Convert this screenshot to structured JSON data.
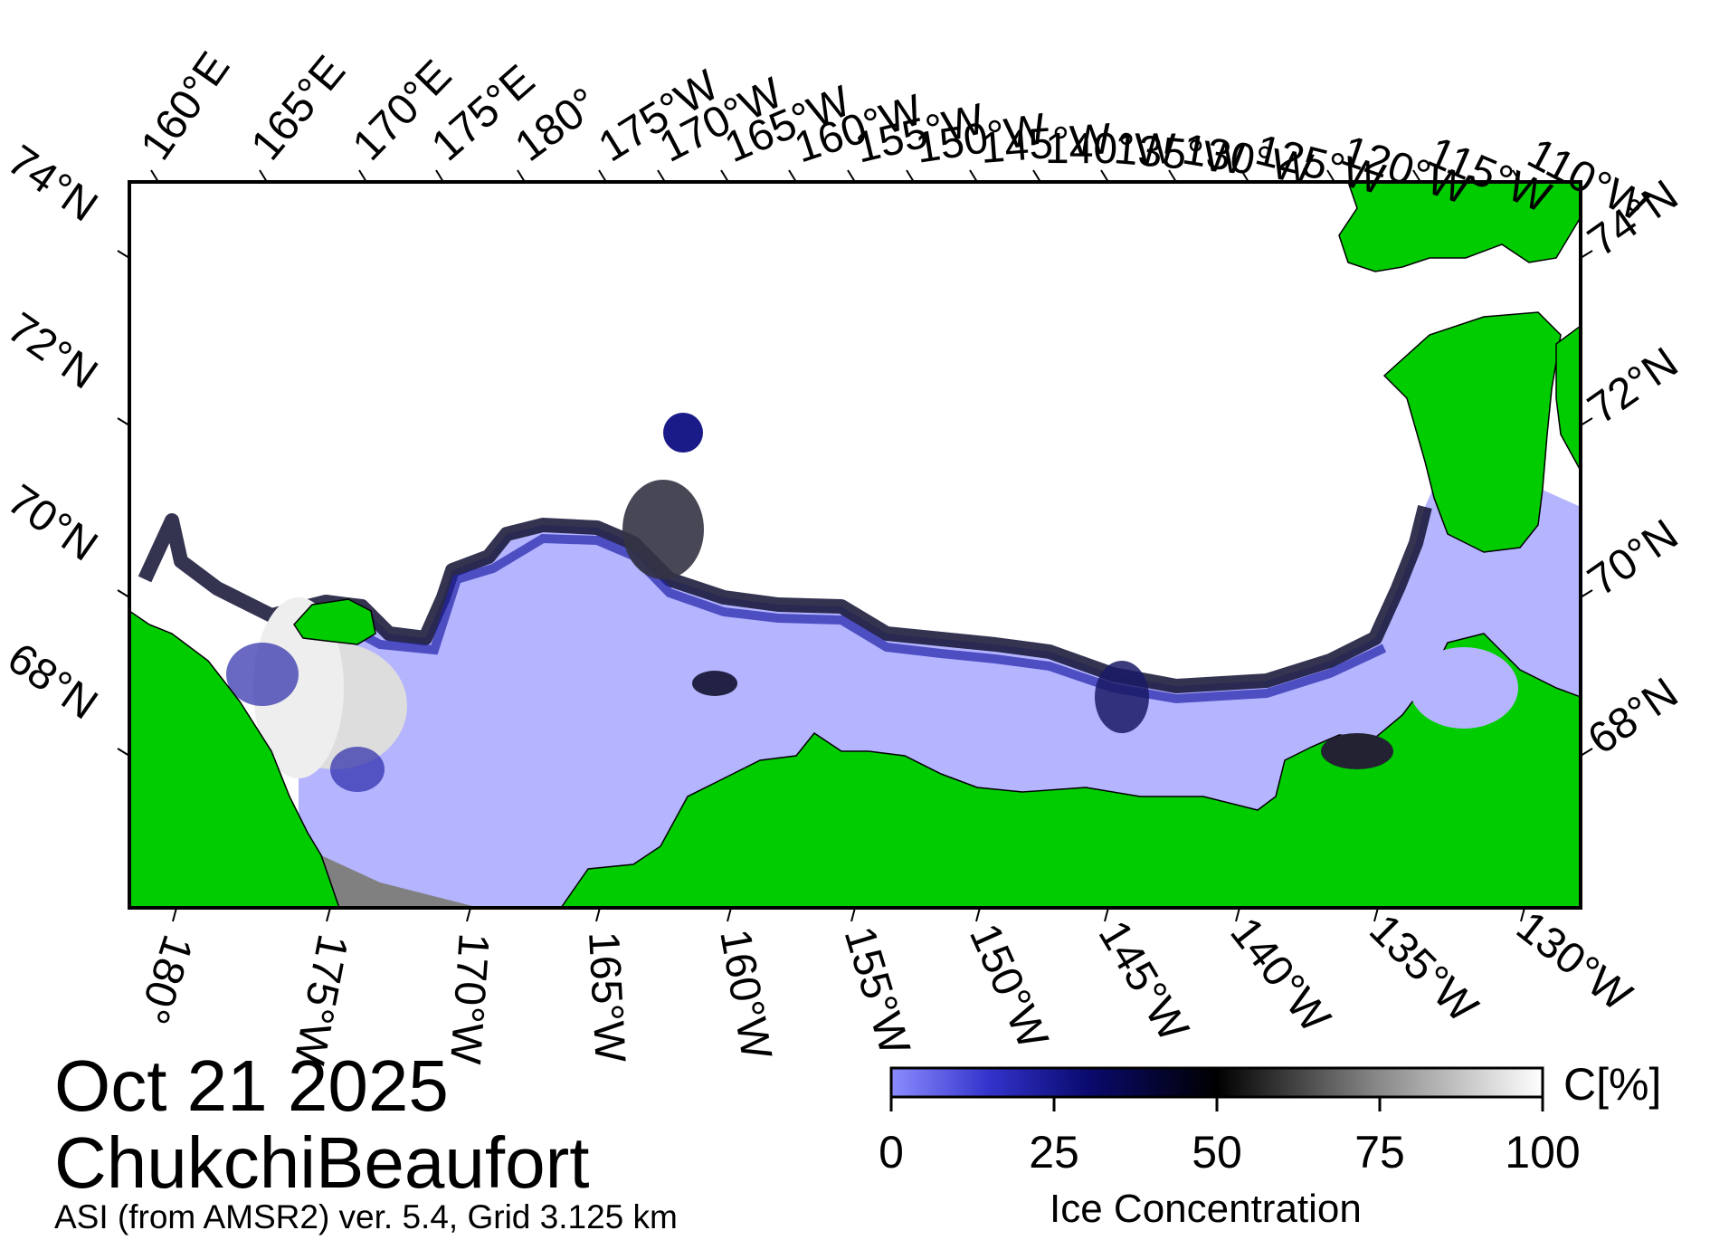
{
  "map": {
    "title_date": "Oct 21 2025",
    "region": "ChukchiBeaufort",
    "source": "ASI (from AMSR2) ver. 5.4,  Grid 3.125 km",
    "top_lon_labels": [
      "160°E",
      "165°E",
      "170°E",
      "175°E",
      "180°",
      "175°W",
      "170°W",
      "165°W",
      "160°W",
      "155°W",
      "150°W",
      "145°W",
      "140°W",
      "135°W",
      "130°W",
      "125°W",
      "120°W",
      "115°W",
      "110°W"
    ],
    "bottom_lon_labels": [
      "180°",
      "175°W",
      "170°W",
      "165°W",
      "160°W",
      "155°W",
      "150°W",
      "145°W",
      "140°W",
      "135°W",
      "130°W"
    ],
    "left_lat_labels": [
      "74°N",
      "72°N",
      "70°N",
      "68°N"
    ],
    "right_lat_labels": [
      "74°N",
      "72°N",
      "70°N",
      "68°N"
    ],
    "legend": {
      "title": "Ice Concentration",
      "unit": "C[%]",
      "ticks": [
        "0",
        "25",
        "50",
        "75",
        "100"
      ],
      "range": [
        0,
        100
      ]
    },
    "colors": {
      "land": "#00cc00",
      "open_water": "#b4b4ff",
      "no_data": "#808080",
      "ice_low": "#1a1a99",
      "ice_mid": "#000000",
      "ice_high": "#ffffff",
      "frame": "#000000"
    }
  }
}
